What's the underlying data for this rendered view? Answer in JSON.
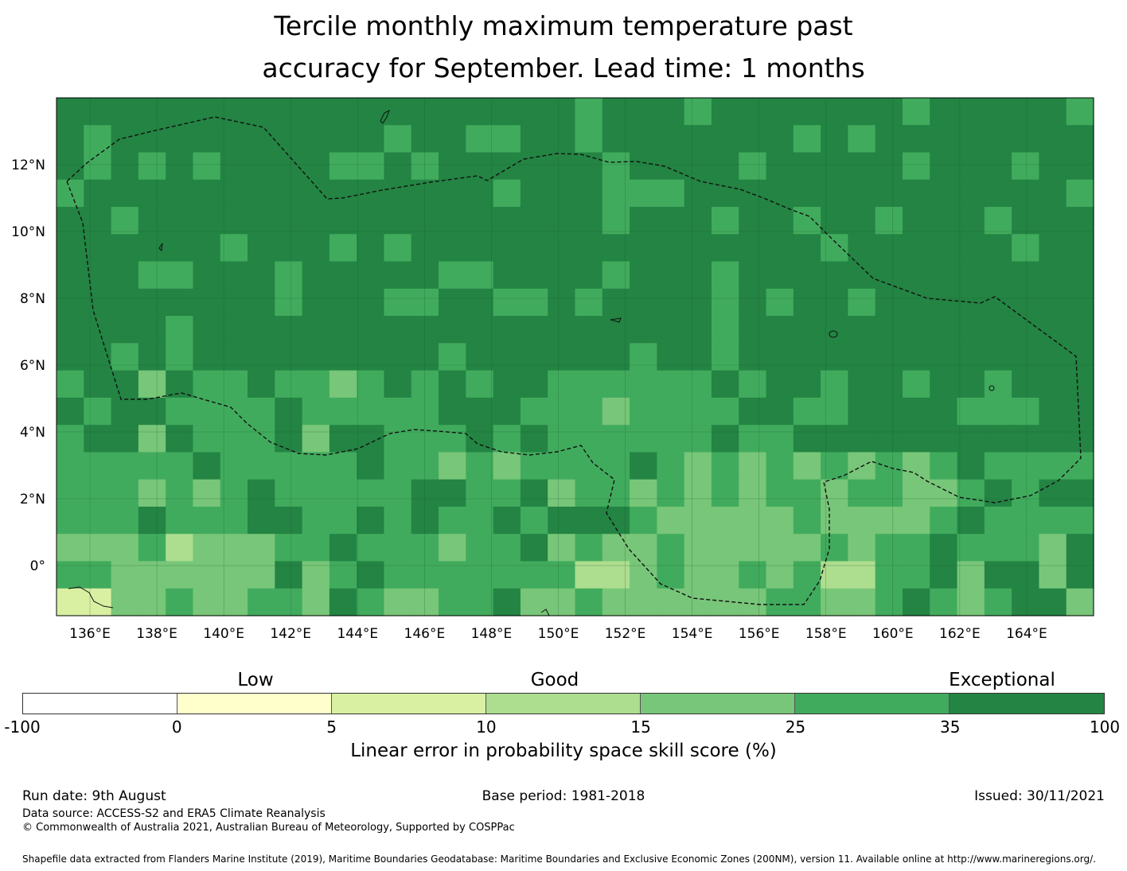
{
  "title_line1": "Tercile monthly maximum temperature past",
  "title_line2": "accuracy for September. Lead time: 1 months",
  "map": {
    "lon_min": 135,
    "lon_max": 166,
    "lat_min": -1.5,
    "lat_max": 14,
    "cell_deg": 0.833,
    "lon_ticks": [
      "136°E",
      "138°E",
      "140°E",
      "142°E",
      "144°E",
      "146°E",
      "148°E",
      "150°E",
      "152°E",
      "154°E",
      "156°E",
      "158°E",
      "160°E",
      "162°E",
      "164°E"
    ],
    "lat_ticks": [
      "12°N",
      "10°N",
      "8°N",
      "6°N",
      "4°N",
      "2°N",
      "0°"
    ],
    "grid": true,
    "eez_boundary_style": "dashed"
  },
  "colorbar": {
    "categories": [
      "Low",
      "Good",
      "Exceptional"
    ],
    "ticks": [
      "-100",
      "0",
      "5",
      "10",
      "15",
      "25",
      "35",
      "100"
    ],
    "colors": [
      "#ffffff",
      "#ffffcc",
      "#d9f0a3",
      "#addd8e",
      "#78c679",
      "#41ab5d",
      "#238443"
    ],
    "label": "Linear error in probability space skill score (%)"
  },
  "footer": {
    "run_date": "Run date: 9th August",
    "base_period": "Base period: 1981-2018",
    "issued": "Issued: 30/11/2021",
    "data_source": "Data source: ACCESS-S2 and ERA5 Climate Reanalysis",
    "copyright": "© Commonwealth of Australia 2021, Australian Bureau of Meteorology, Supported by COSPPac",
    "shapefile": "Shapefile data extracted from Flanders Marine Institute (2019), Maritime Boundaries Geodatabase: Maritime Boundaries and Exclusive Economic Zones (200NM), version 11. Available online at http://www.marineregions.org/."
  }
}
